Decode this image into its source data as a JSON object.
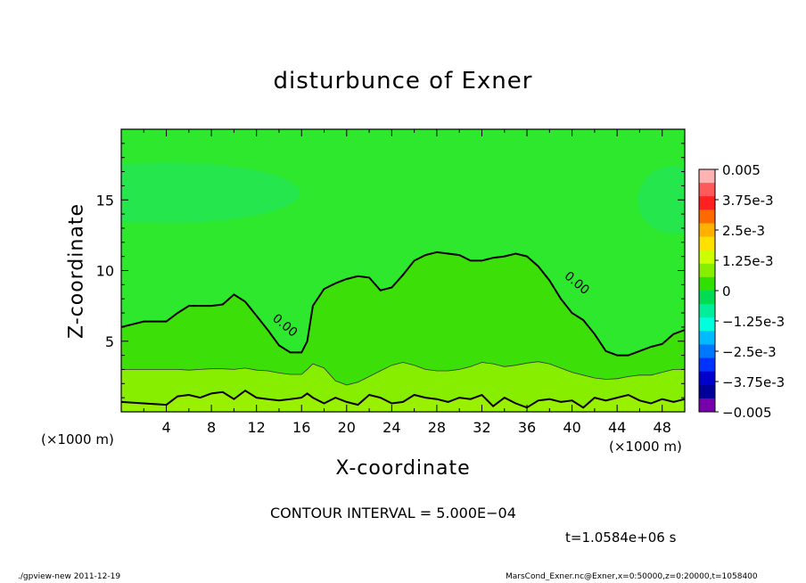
{
  "chart_data": {
    "type": "heatmap",
    "title": "disturbunce of Exner",
    "xlabel": "X-coordinate",
    "ylabel": "Z-coordinate",
    "x_unit": "(×1000 m)",
    "xlim": [
      0,
      50
    ],
    "ylim": [
      0,
      20
    ],
    "x_ticks": [
      "4",
      "8",
      "12",
      "16",
      "20",
      "24",
      "28",
      "32",
      "36",
      "40",
      "44",
      "48"
    ],
    "y_ticks": [
      "5",
      "10",
      "15"
    ],
    "colorbar": {
      "labels": [
        "0.005",
        "3.75e-3",
        "2.5e-3",
        "1.25e-3",
        "0",
        "−1.25e-3",
        "−2.5e-3",
        "−3.75e-3",
        "−0.005"
      ],
      "colors": [
        "#ffb2b2",
        "#ff5a5a",
        "#ff2020",
        "#ff6a00",
        "#ffb000",
        "#ffe000",
        "#ccff00",
        "#88ee00",
        "#30e000",
        "#00dd55",
        "#00ee99",
        "#00ffdd",
        "#00bbff",
        "#0077ff",
        "#0033ff",
        "#0000cc",
        "#000099",
        "#7700aa"
      ]
    },
    "contour_labels": [
      "0.00",
      "0.00"
    ],
    "contour_interval": "CONTOUR INTERVAL = 5.000E−04",
    "time": "t=1.0584e+06 s",
    "zero_contour_x": [
      0,
      2,
      4,
      5,
      6,
      7,
      8,
      9,
      10,
      11,
      12,
      13,
      14,
      15,
      16,
      16.5,
      17,
      18,
      19,
      20,
      21,
      22,
      23,
      24,
      25,
      26,
      27,
      28,
      29,
      30,
      31,
      32,
      33,
      34,
      35,
      36,
      37,
      38,
      39,
      40,
      41,
      42,
      43,
      44,
      45,
      46,
      47,
      48,
      49,
      50
    ],
    "zero_contour_z": [
      6,
      6.4,
      6.4,
      7,
      7.5,
      7.5,
      7.5,
      7.6,
      8.3,
      7.8,
      6.8,
      5.8,
      4.7,
      4.2,
      4.2,
      5,
      7.5,
      8.7,
      9.1,
      9.4,
      9.6,
      9.5,
      8.6,
      8.8,
      9.7,
      10.7,
      11.1,
      11.3,
      11.2,
      11.1,
      10.7,
      10.7,
      10.9,
      11,
      11.2,
      11,
      10.3,
      9.3,
      8,
      7,
      6.5,
      5.5,
      4.3,
      4,
      4,
      4.3,
      4.6,
      4.8,
      5.5,
      5.8
    ],
    "lower_contour_z": [
      3,
      3,
      3,
      3,
      2.95,
      3,
      3.05,
      3.05,
      3,
      3.1,
      2.95,
      2.9,
      2.75,
      2.65,
      2.65,
      3,
      3.4,
      3.1,
      2.2,
      1.9,
      2.1,
      2.5,
      2.9,
      3.3,
      3.5,
      3.3,
      3,
      2.9,
      2.9,
      3,
      3.2,
      3.5,
      3.4,
      3.2,
      3.3,
      3.45,
      3.55,
      3.4,
      3.1,
      2.8,
      2.6,
      2.4,
      2.3,
      2.35,
      2.5,
      2.6,
      2.6,
      2.8,
      3,
      3
    ],
    "bottom_contour_z": [
      0.7,
      0.6,
      0.5,
      1.1,
      1.2,
      1.0,
      1.3,
      1.4,
      0.9,
      1.5,
      1.0,
      0.9,
      0.8,
      0.9,
      1.0,
      1.3,
      1.0,
      0.6,
      1.0,
      0.7,
      0.5,
      1.2,
      1.0,
      0.6,
      0.7,
      1.2,
      1.0,
      0.9,
      0.7,
      1.0,
      0.9,
      1.2,
      0.4,
      1.0,
      0.6,
      0.3,
      0.8,
      0.9,
      0.7,
      0.8,
      0.3,
      1.0,
      0.8,
      1.0,
      1.2,
      0.8,
      0.6,
      0.9,
      0.7,
      0.9
    ]
  },
  "footer": {
    "left": "./gpview-new   2011-12-19",
    "right": "MarsCond_Exner.nc@Exner,x=0:50000,z=0:20000,t=1058400"
  }
}
